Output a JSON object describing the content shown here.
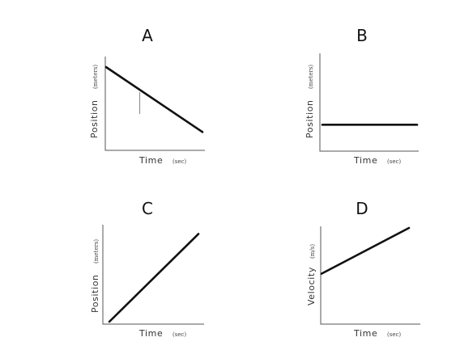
{
  "chart_data": [
    {
      "id": "A",
      "type": "line",
      "title": "A",
      "xlabel": "Time",
      "xunit": "(sec)",
      "ylabel": "Position",
      "yunit": "(meters)",
      "series": [
        {
          "x": [
            0,
            1
          ],
          "y": [
            1,
            0.22
          ]
        }
      ],
      "marker_x": 0.35
    },
    {
      "id": "B",
      "type": "line",
      "title": "B",
      "xlabel": "Time",
      "xunit": "(sec)",
      "ylabel": "Position",
      "yunit": "(meters)",
      "series": [
        {
          "x": [
            0,
            1
          ],
          "y": [
            0.27,
            0.27
          ]
        }
      ]
    },
    {
      "id": "C",
      "type": "line",
      "title": "C",
      "xlabel": "Time",
      "xunit": "(sec)",
      "ylabel": "Position",
      "yunit": "(meters)",
      "series": [
        {
          "x": [
            0,
            1
          ],
          "y": [
            0,
            0.92
          ]
        }
      ]
    },
    {
      "id": "D",
      "type": "line",
      "title": "D",
      "xlabel": "Time",
      "xunit": "(sec)",
      "ylabel": "Velocity",
      "yunit": "(m/s)",
      "series": [
        {
          "x": [
            0,
            1
          ],
          "y": [
            0.52,
            1
          ]
        }
      ]
    }
  ]
}
